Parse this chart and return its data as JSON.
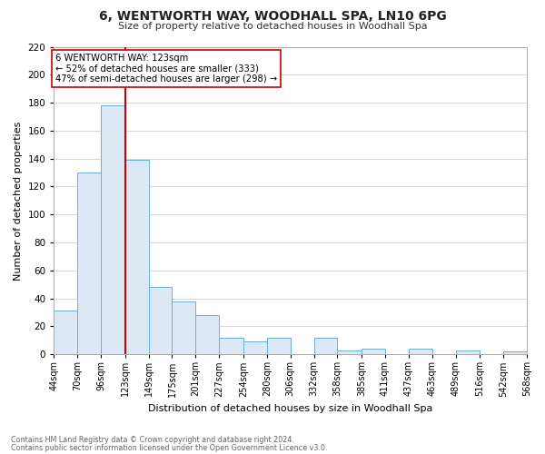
{
  "title": "6, WENTWORTH WAY, WOODHALL SPA, LN10 6PG",
  "subtitle": "Size of property relative to detached houses in Woodhall Spa",
  "xlabel": "Distribution of detached houses by size in Woodhall Spa",
  "ylabel": "Number of detached properties",
  "bin_labels": [
    "44sqm",
    "70sqm",
    "96sqm",
    "123sqm",
    "149sqm",
    "175sqm",
    "201sqm",
    "227sqm",
    "254sqm",
    "280sqm",
    "306sqm",
    "332sqm",
    "358sqm",
    "385sqm",
    "411sqm",
    "437sqm",
    "463sqm",
    "489sqm",
    "516sqm",
    "542sqm",
    "568sqm"
  ],
  "bar_heights": [
    31,
    130,
    178,
    139,
    48,
    38,
    28,
    12,
    9,
    12,
    0,
    12,
    3,
    4,
    0,
    4,
    0,
    3,
    0,
    2
  ],
  "bar_color": "#dce9f5",
  "bar_edge_color": "#6aaed6",
  "vline_x": 123,
  "vline_color": "#cc0000",
  "annotation_title": "6 WENTWORTH WAY: 123sqm",
  "annotation_line1": "← 52% of detached houses are smaller (333)",
  "annotation_line2": "47% of semi-detached houses are larger (298) →",
  "annotation_box_facecolor": "#ffffff",
  "annotation_box_edgecolor": "#cc0000",
  "ylim": [
    0,
    220
  ],
  "yticks": [
    0,
    20,
    40,
    60,
    80,
    100,
    120,
    140,
    160,
    180,
    200,
    220
  ],
  "footnote1": "Contains HM Land Registry data © Crown copyright and database right 2024.",
  "footnote2": "Contains public sector information licensed under the Open Government Licence v3.0.",
  "bg_color": "#ffffff",
  "plot_bg_color": "#ffffff",
  "grid_color": "#d0d8e0"
}
